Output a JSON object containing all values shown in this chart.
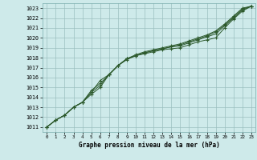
{
  "xlabel": "Graphe pression niveau de la mer (hPa)",
  "xlim": [
    -0.5,
    23.5
  ],
  "ylim": [
    1010.5,
    1023.5
  ],
  "xticks": [
    0,
    1,
    2,
    3,
    4,
    5,
    6,
    7,
    8,
    9,
    10,
    11,
    12,
    13,
    14,
    15,
    16,
    17,
    18,
    19,
    20,
    21,
    22,
    23
  ],
  "yticks": [
    1011,
    1012,
    1013,
    1014,
    1015,
    1016,
    1017,
    1018,
    1019,
    1020,
    1021,
    1022,
    1023
  ],
  "background_color": "#ceeaea",
  "grid_color": "#9bbfbf",
  "line_color": "#2d5a2d",
  "series": [
    [
      1011.0,
      1011.7,
      1012.2,
      1013.0,
      1013.5,
      1014.3,
      1015.0,
      1016.3,
      1017.2,
      1017.8,
      1018.2,
      1018.4,
      1018.6,
      1018.8,
      1018.9,
      1019.0,
      1019.3,
      1019.6,
      1019.8,
      1020.0,
      1021.0,
      1021.9,
      1022.7,
      1023.2
    ],
    [
      1011.0,
      1011.7,
      1012.2,
      1013.0,
      1013.5,
      1014.7,
      1015.4,
      1016.3,
      1017.2,
      1017.9,
      1018.2,
      1018.5,
      1018.7,
      1018.9,
      1019.1,
      1019.2,
      1019.5,
      1019.8,
      1020.1,
      1020.4,
      1021.2,
      1022.0,
      1022.8,
      1023.2
    ],
    [
      1011.0,
      1011.7,
      1012.2,
      1013.0,
      1013.5,
      1014.5,
      1015.7,
      1016.3,
      1017.2,
      1017.9,
      1018.3,
      1018.6,
      1018.8,
      1019.0,
      1019.2,
      1019.4,
      1019.7,
      1020.0,
      1020.3,
      1020.7,
      1021.4,
      1022.2,
      1023.0,
      1023.2
    ],
    [
      1011.0,
      1011.7,
      1012.2,
      1013.0,
      1013.5,
      1014.5,
      1015.2,
      1016.3,
      1017.2,
      1017.9,
      1018.2,
      1018.5,
      1018.7,
      1018.9,
      1019.1,
      1019.3,
      1019.6,
      1019.9,
      1020.2,
      1020.6,
      1021.3,
      1022.1,
      1022.9,
      1023.2
    ]
  ]
}
